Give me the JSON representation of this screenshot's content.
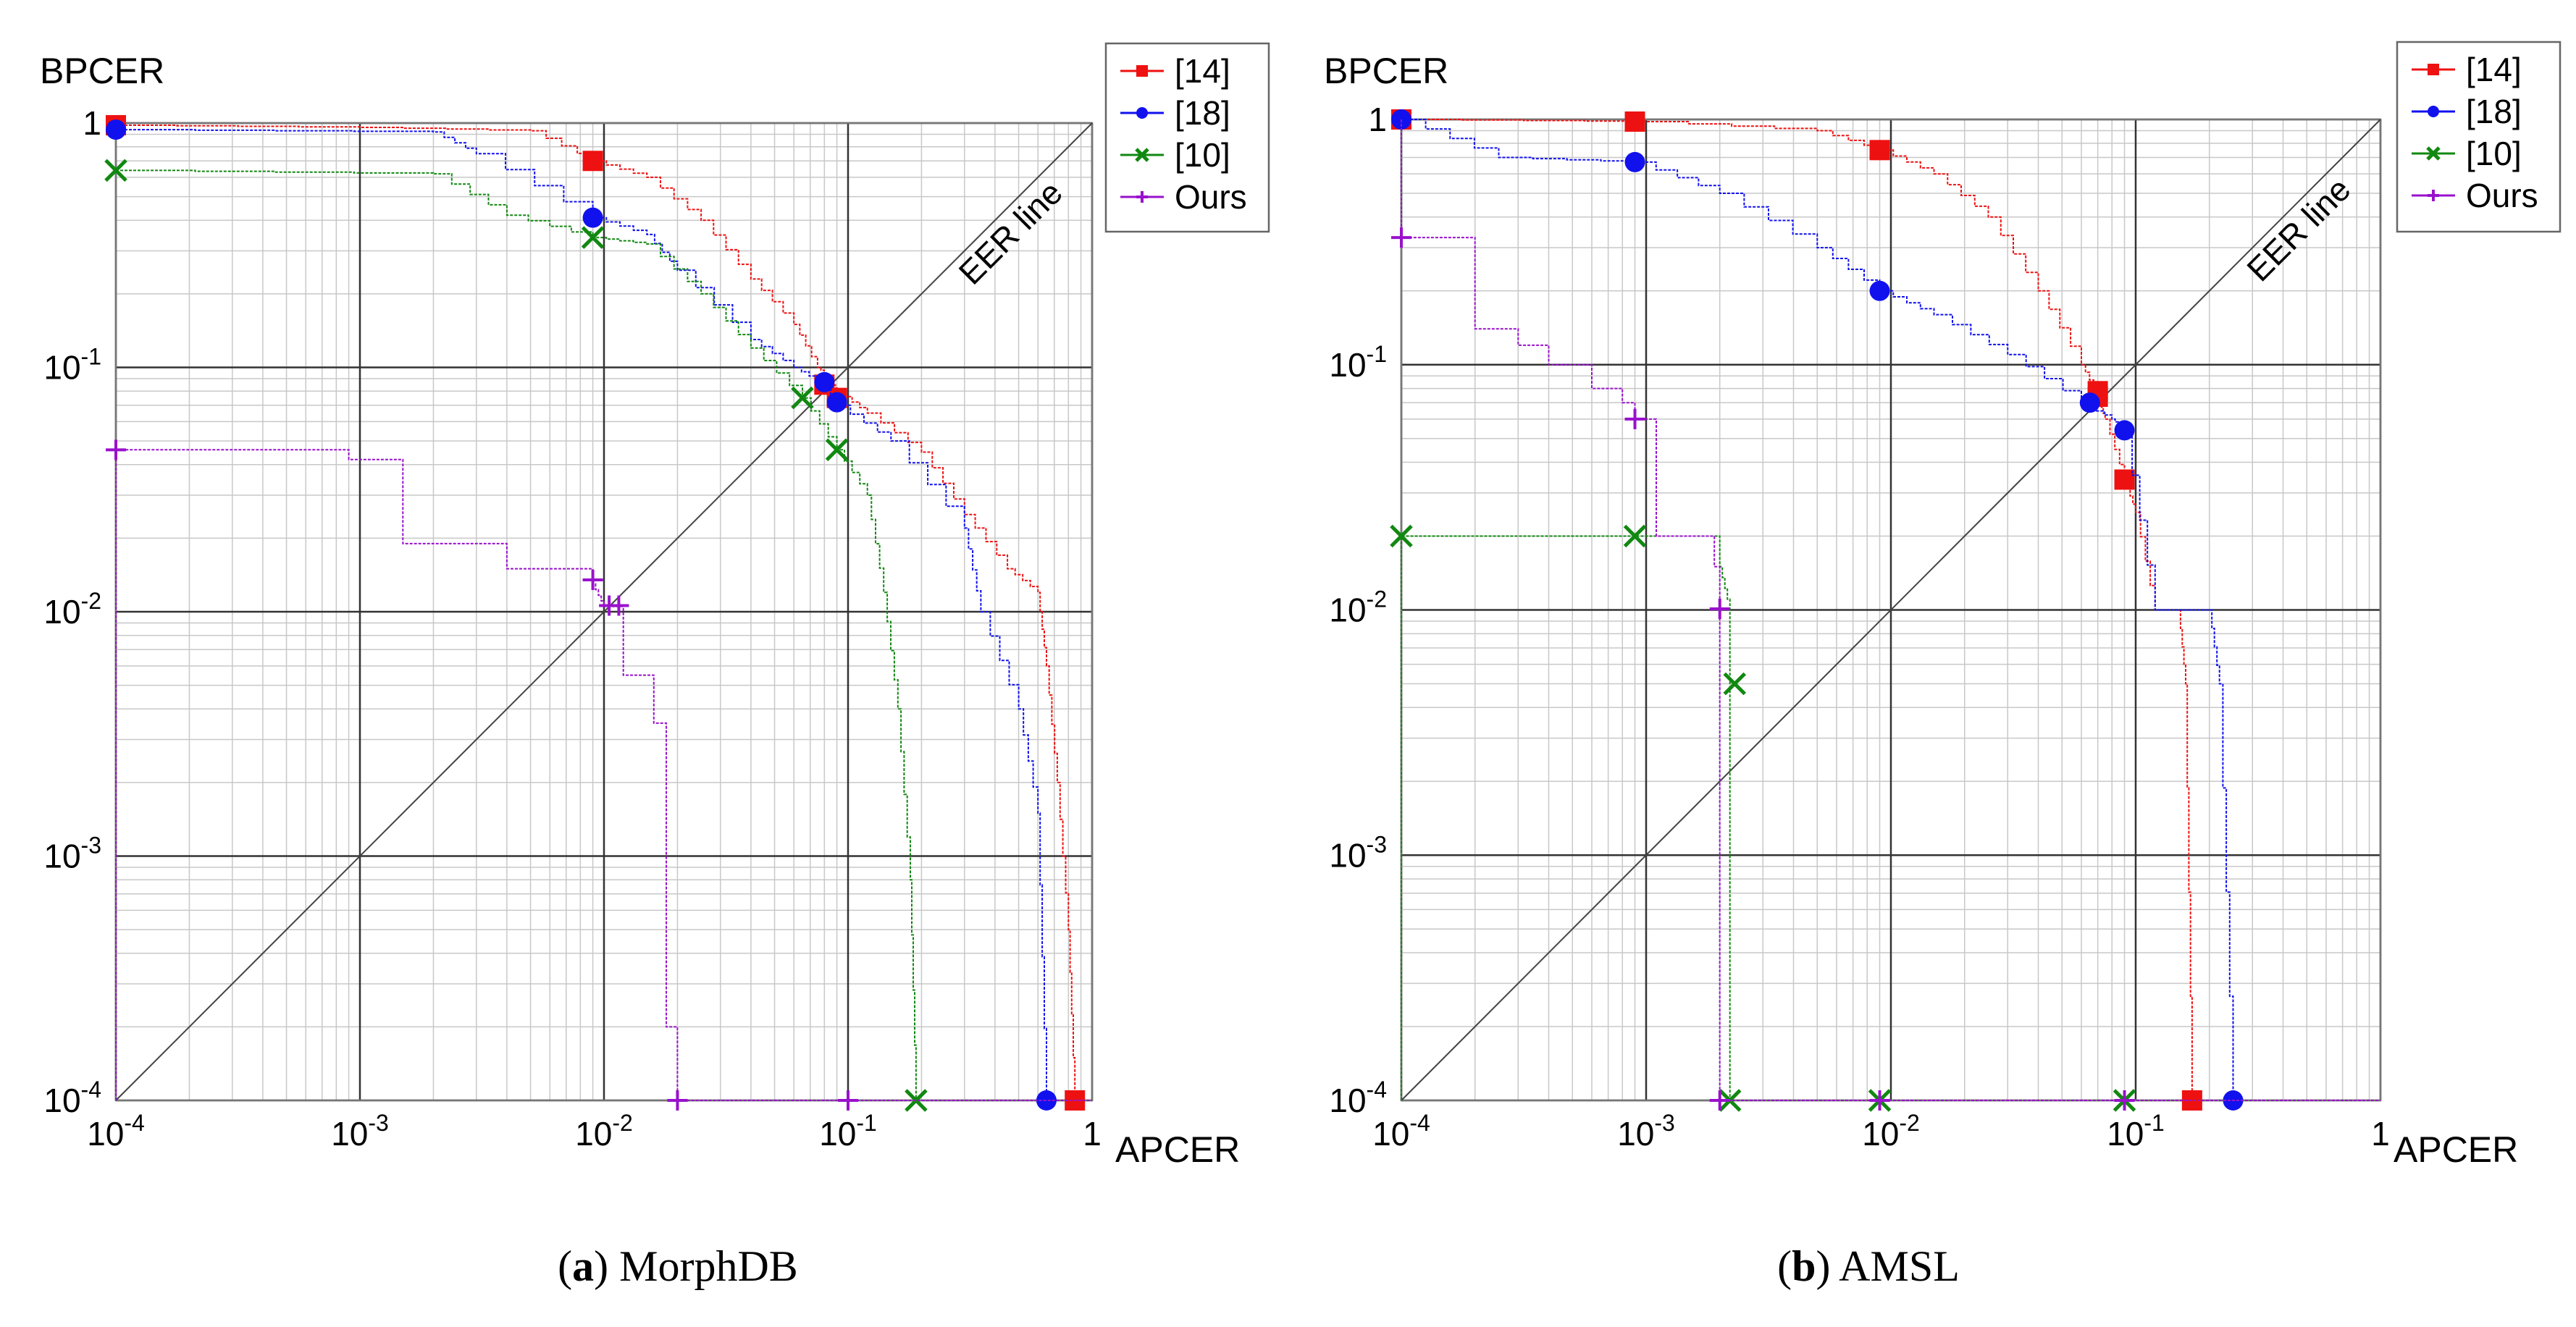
{
  "chart_data": [
    {
      "type": "line",
      "title": "MorphDB",
      "caption_label": "a",
      "xlabel": "APCER",
      "ylabel": "BPCER",
      "x_scale": "log",
      "y_scale": "log",
      "xlim": [
        0.0001,
        1
      ],
      "ylim": [
        0.0001,
        1
      ],
      "x_tick_labels": [
        {
          "base": "10",
          "exp": "-4"
        },
        {
          "base": "10",
          "exp": "-3"
        },
        {
          "base": "10",
          "exp": "-2"
        },
        {
          "base": "10",
          "exp": "-1"
        },
        {
          "base": "1",
          "exp": ""
        }
      ],
      "y_tick_labels": [
        {
          "base": "10",
          "exp": "-4"
        },
        {
          "base": "10",
          "exp": "-3"
        },
        {
          "base": "10",
          "exp": "-2"
        },
        {
          "base": "10",
          "exp": "-1"
        },
        {
          "base": "1",
          "exp": ""
        }
      ],
      "grid": true,
      "legend_position": "top-right",
      "annotation": "EER line",
      "series": [
        {
          "name": "[14]",
          "color": "#ee1111",
          "marker": "square",
          "points": [
            [
              0.0001,
              0.98
            ],
            [
              0.001,
              0.96
            ],
            [
              0.005,
              0.93
            ],
            [
              0.009,
              0.7
            ],
            [
              0.015,
              0.6
            ],
            [
              0.025,
              0.4
            ],
            [
              0.04,
              0.23
            ],
            [
              0.06,
              0.15
            ],
            [
              0.075,
              0.1
            ],
            [
              0.085,
              0.09
            ],
            [
              0.09,
              0.08
            ],
            [
              0.12,
              0.065
            ],
            [
              0.2,
              0.045
            ],
            [
              0.3,
              0.025
            ],
            [
              0.45,
              0.015
            ],
            [
              0.6,
              0.012
            ],
            [
              0.65,
              0.006
            ],
            [
              0.72,
              0.002
            ],
            [
              0.8,
              0.0005
            ],
            [
              0.85,
              0.0001
            ]
          ],
          "markers": [
            [
              0.0001,
              0.98
            ],
            [
              0.009,
              0.7
            ],
            [
              0.08,
              0.085
            ],
            [
              0.09,
              0.075
            ],
            [
              0.85,
              0.0001
            ]
          ]
        },
        {
          "name": "[18]",
          "color": "#1111ee",
          "marker": "circle",
          "points": [
            [
              0.0001,
              0.94
            ],
            [
              0.002,
              0.92
            ],
            [
              0.003,
              0.75
            ],
            [
              0.009,
              0.41
            ],
            [
              0.015,
              0.35
            ],
            [
              0.02,
              0.25
            ],
            [
              0.04,
              0.13
            ],
            [
              0.06,
              0.1
            ],
            [
              0.08,
              0.085
            ],
            [
              0.09,
              0.07
            ],
            [
              0.15,
              0.05
            ],
            [
              0.3,
              0.022
            ],
            [
              0.35,
              0.01
            ],
            [
              0.5,
              0.004
            ],
            [
              0.6,
              0.0015
            ],
            [
              0.65,
              0.0001
            ]
          ],
          "markers": [
            [
              0.0001,
              0.94
            ],
            [
              0.009,
              0.41
            ],
            [
              0.08,
              0.087
            ],
            [
              0.09,
              0.072
            ],
            [
              0.65,
              0.0001
            ]
          ]
        },
        {
          "name": "[10]",
          "color": "#118811",
          "marker": "x",
          "points": [
            [
              0.0001,
              0.64
            ],
            [
              0.002,
              0.62
            ],
            [
              0.004,
              0.42
            ],
            [
              0.009,
              0.34
            ],
            [
              0.015,
              0.32
            ],
            [
              0.025,
              0.2
            ],
            [
              0.04,
              0.12
            ],
            [
              0.065,
              0.075
            ],
            [
              0.09,
              0.046
            ],
            [
              0.12,
              0.03
            ],
            [
              0.14,
              0.012
            ],
            [
              0.16,
              0.004
            ],
            [
              0.18,
              0.0008
            ],
            [
              0.19,
              0.0001
            ]
          ],
          "markers": [
            [
              0.0001,
              0.64
            ],
            [
              0.009,
              0.34
            ],
            [
              0.065,
              0.075
            ],
            [
              0.09,
              0.046
            ],
            [
              0.19,
              0.0001
            ]
          ]
        },
        {
          "name": "Ours",
          "color": "#9911cc",
          "marker": "plus",
          "points": [
            [
              0.0001,
              0.0001
            ],
            [
              0.0001,
              0.046
            ],
            [
              0.0009,
              0.046
            ],
            [
              0.0009,
              0.042
            ],
            [
              0.0015,
              0.042
            ],
            [
              0.0015,
              0.019
            ],
            [
              0.004,
              0.019
            ],
            [
              0.004,
              0.015
            ],
            [
              0.009,
              0.015
            ],
            [
              0.009,
              0.013
            ],
            [
              0.01,
              0.0105
            ],
            [
              0.012,
              0.0105
            ],
            [
              0.012,
              0.0055
            ],
            [
              0.016,
              0.0055
            ],
            [
              0.016,
              0.0035
            ],
            [
              0.018,
              0.0035
            ],
            [
              0.018,
              0.0002
            ],
            [
              0.02,
              0.0002
            ],
            [
              0.02,
              0.0001
            ],
            [
              1,
              0.0001
            ]
          ],
          "markers": [
            [
              0.0001,
              0.046
            ],
            [
              0.009,
              0.0135
            ],
            [
              0.0105,
              0.0106
            ],
            [
              0.0115,
              0.0106
            ],
            [
              0.02,
              0.0001
            ],
            [
              0.1,
              0.0001
            ]
          ]
        }
      ]
    },
    {
      "type": "line",
      "title": "AMSL",
      "caption_label": "b",
      "xlabel": "APCER",
      "ylabel": "BPCER",
      "x_scale": "log",
      "y_scale": "log",
      "xlim": [
        0.0001,
        1
      ],
      "ylim": [
        0.0001,
        1
      ],
      "x_tick_labels": [
        {
          "base": "10",
          "exp": "-4"
        },
        {
          "base": "10",
          "exp": "-3"
        },
        {
          "base": "10",
          "exp": "-2"
        },
        {
          "base": "10",
          "exp": "-1"
        },
        {
          "base": "1",
          "exp": ""
        }
      ],
      "y_tick_labels": [
        {
          "base": "10",
          "exp": "-4"
        },
        {
          "base": "10",
          "exp": "-3"
        },
        {
          "base": "10",
          "exp": "-2"
        },
        {
          "base": "10",
          "exp": "-1"
        },
        {
          "base": "1",
          "exp": ""
        }
      ],
      "grid": true,
      "legend_position": "top-right",
      "annotation": "EER line",
      "series": [
        {
          "name": "[14]",
          "color": "#ee1111",
          "marker": "square",
          "points": [
            [
              0.0001,
              1
            ],
            [
              0.001,
              0.98
            ],
            [
              0.005,
              0.9
            ],
            [
              0.009,
              0.75
            ],
            [
              0.015,
              0.6
            ],
            [
              0.025,
              0.4
            ],
            [
              0.04,
              0.2
            ],
            [
              0.06,
              0.1
            ],
            [
              0.07,
              0.075
            ],
            [
              0.075,
              0.06
            ],
            [
              0.09,
              0.034
            ],
            [
              0.1,
              0.025
            ],
            [
              0.12,
              0.01
            ],
            [
              0.15,
              0.01
            ],
            [
              0.16,
              0.005
            ],
            [
              0.17,
              0.0001
            ]
          ],
          "markers": [
            [
              0.0001,
              1
            ],
            [
              0.0009,
              0.98
            ],
            [
              0.009,
              0.75
            ],
            [
              0.07,
              0.078
            ],
            [
              0.07,
              0.074
            ],
            [
              0.09,
              0.034
            ],
            [
              0.17,
              0.0001
            ]
          ]
        },
        {
          "name": "[18]",
          "color": "#1111ee",
          "marker": "circle",
          "points": [
            [
              0.0001,
              1
            ],
            [
              0.00025,
              0.7
            ],
            [
              0.0009,
              0.67
            ],
            [
              0.002,
              0.5
            ],
            [
              0.005,
              0.3
            ],
            [
              0.009,
              0.2
            ],
            [
              0.015,
              0.16
            ],
            [
              0.03,
              0.11
            ],
            [
              0.06,
              0.07
            ],
            [
              0.08,
              0.06
            ],
            [
              0.09,
              0.054
            ],
            [
              0.12,
              0.01
            ],
            [
              0.2,
              0.01
            ],
            [
              0.22,
              0.005
            ],
            [
              0.25,
              0.0001
            ]
          ],
          "markers": [
            [
              0.0001,
              1
            ],
            [
              0.0009,
              0.67
            ],
            [
              0.009,
              0.2
            ],
            [
              0.065,
              0.07
            ],
            [
              0.09,
              0.054
            ],
            [
              0.25,
              0.0001
            ]
          ]
        },
        {
          "name": "[10]",
          "color": "#118811",
          "marker": "x",
          "points": [
            [
              0.0001,
              0.0001
            ],
            [
              0.0001,
              0.02
            ],
            [
              0.002,
              0.02
            ],
            [
              0.002,
              0.015
            ],
            [
              0.0022,
              0.01
            ],
            [
              0.0022,
              0.0001
            ],
            [
              1,
              0.0001
            ]
          ],
          "markers": [
            [
              0.0001,
              0.02
            ],
            [
              0.0009,
              0.02
            ],
            [
              0.0023,
              0.005
            ],
            [
              0.0022,
              0.0001
            ],
            [
              0.009,
              0.0001
            ],
            [
              0.09,
              0.0001
            ]
          ]
        },
        {
          "name": "Ours",
          "color": "#9911cc",
          "marker": "plus",
          "points": [
            [
              0.0001,
              1
            ],
            [
              0.0001,
              0.33
            ],
            [
              0.0002,
              0.33
            ],
            [
              0.0002,
              0.14
            ],
            [
              0.0003,
              0.14
            ],
            [
              0.0003,
              0.12
            ],
            [
              0.0004,
              0.12
            ],
            [
              0.0004,
              0.1
            ],
            [
              0.0006,
              0.1
            ],
            [
              0.0006,
              0.08
            ],
            [
              0.0008,
              0.08
            ],
            [
              0.0008,
              0.07
            ],
            [
              0.0009,
              0.07
            ],
            [
              0.0009,
              0.06
            ],
            [
              0.0011,
              0.06
            ],
            [
              0.0011,
              0.02
            ],
            [
              0.0019,
              0.02
            ],
            [
              0.0019,
              0.015
            ],
            [
              0.002,
              0.015
            ],
            [
              0.002,
              0.01
            ],
            [
              0.002,
              0.0001
            ],
            [
              1,
              0.0001
            ]
          ],
          "markers": [
            [
              0.0001,
              0.33
            ],
            [
              0.0009,
              0.06
            ],
            [
              0.002,
              0.0101
            ],
            [
              0.002,
              0.0001
            ],
            [
              0.009,
              0.0001
            ],
            [
              0.09,
              0.0001
            ]
          ]
        }
      ]
    }
  ],
  "captions": [
    {
      "label": "a",
      "title": "MorphDB"
    },
    {
      "label": "b",
      "title": "AMSL"
    }
  ]
}
